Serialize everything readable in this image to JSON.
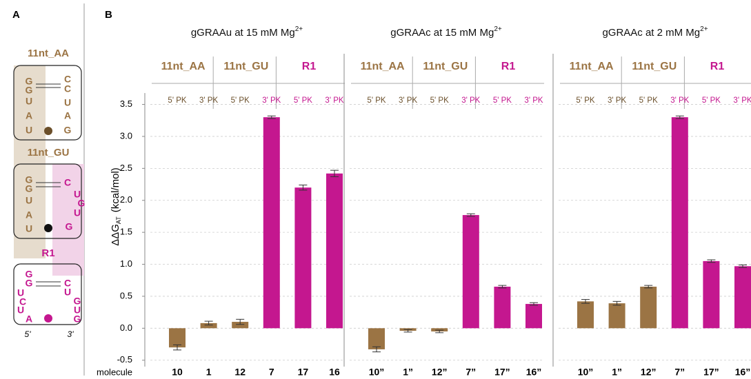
{
  "panel_a": {
    "label": "A",
    "motifs": [
      {
        "name": "11nt_AA",
        "name_color": "#9b7444",
        "left": [
          "G",
          "G",
          "U",
          "A",
          "U"
        ],
        "left_color": "#9b7444",
        "right": [
          "C",
          "C",
          "U",
          "A",
          "G"
        ],
        "right_color": "#9b7444",
        "dot_color": "#6b4f2a"
      },
      {
        "name": "11nt_GU",
        "name_color": "#9b7444",
        "left": [
          "G",
          "G",
          "U",
          "A",
          "U"
        ],
        "left_color": "#9b7444",
        "right": [
          "C",
          "U",
          "G",
          "U",
          "G"
        ],
        "right_color": "#c4178f",
        "dot_color": "#111111"
      },
      {
        "name": "R1",
        "name_color": "#c4178f",
        "left": [
          "G",
          "G",
          "U",
          "C",
          "U",
          "A"
        ],
        "left_color": "#c4178f",
        "right": [
          "C",
          "U",
          "G",
          "U",
          "G"
        ],
        "right_color": "#c4178f",
        "dot_color": "#c4178f"
      }
    ],
    "ends": [
      "5'",
      "3'"
    ]
  },
  "panel_b_label": "B",
  "chart_data": [
    {
      "type": "bar",
      "title": "gGRAAu at 15 mM Mg",
      "title_sup": "2+",
      "ylabel": "ΔΔG",
      "ylabel_sub": "AT",
      "ylabel_unit": "(kcal/mol)",
      "xlabel": "molecule",
      "groups": [
        "11nt_AA",
        "11nt_GU",
        "R1"
      ],
      "group_colors": [
        "#9b7444",
        "#9b7444",
        "#c4178f"
      ],
      "bar_labels": [
        "5' PK",
        "3' PK",
        "5' PK",
        "3' PK",
        "5' PK",
        "3' PK"
      ],
      "bar_label_colors": [
        "#6b4f2a",
        "#6b4f2a",
        "#6b4f2a",
        "#c4178f",
        "#c4178f",
        "#c4178f"
      ],
      "categories": [
        "10",
        "1",
        "12",
        "7",
        "17",
        "16"
      ],
      "values": [
        -0.3,
        0.08,
        0.1,
        3.3,
        2.2,
        2.42
      ],
      "errors": [
        0.04,
        0.03,
        0.04,
        0.02,
        0.04,
        0.05
      ],
      "colors": [
        "#9b7444",
        "#9b7444",
        "#9b7444",
        "#c4178f",
        "#c4178f",
        "#c4178f"
      ],
      "ylim": [
        -0.6,
        3.7
      ],
      "yticks": [
        {
          "value": -0.5,
          "label": "-0.5"
        },
        {
          "value": 0,
          "label": "0.0"
        },
        0.5,
        {
          "value": 1,
          "label": "1.0"
        },
        1.5,
        {
          "value": 2,
          "label": "2.0"
        },
        2.5,
        {
          "value": 3,
          "label": "3.0"
        },
        3.5
      ],
      "grid": true
    },
    {
      "type": "bar",
      "title": "gGRAAc at 15 mM Mg",
      "title_sup": "2+",
      "groups": [
        "11nt_AA",
        "11nt_GU",
        "R1"
      ],
      "group_colors": [
        "#9b7444",
        "#9b7444",
        "#c4178f"
      ],
      "bar_labels": [
        "5' PK",
        "3' PK",
        "5' PK",
        "3' PK",
        "5' PK",
        "3' PK"
      ],
      "bar_label_colors": [
        "#6b4f2a",
        "#6b4f2a",
        "#6b4f2a",
        "#c4178f",
        "#c4178f",
        "#c4178f"
      ],
      "categories": [
        "10”",
        "1”",
        "12”",
        "7”",
        "17”",
        "16”"
      ],
      "values": [
        -0.33,
        -0.04,
        -0.05,
        1.77,
        0.65,
        0.38
      ],
      "errors": [
        0.04,
        0.02,
        0.02,
        0.02,
        0.02,
        0.02
      ],
      "colors": [
        "#9b7444",
        "#9b7444",
        "#9b7444",
        "#c4178f",
        "#c4178f",
        "#c4178f"
      ],
      "ylim": [
        -0.6,
        3.7
      ],
      "yticks": [
        -0.5,
        0,
        0.5,
        1,
        1.5,
        2,
        2.5,
        3,
        3.5
      ],
      "grid": true
    },
    {
      "type": "bar",
      "title": "gGRAAc at 2 mM Mg",
      "title_sup": "2+",
      "groups": [
        "11nt_AA",
        "11nt_GU",
        "R1"
      ],
      "group_colors": [
        "#9b7444",
        "#9b7444",
        "#c4178f"
      ],
      "bar_labels": [
        "5' PK",
        "3' PK",
        "5' PK",
        "3' PK",
        "5' PK",
        "3' PK"
      ],
      "bar_label_colors": [
        "#6b4f2a",
        "#6b4f2a",
        "#6b4f2a",
        "#c4178f",
        "#c4178f",
        "#c4178f"
      ],
      "categories": [
        "10”",
        "1”",
        "12”",
        "7”",
        "17”",
        "16”"
      ],
      "values": [
        0.42,
        0.39,
        0.65,
        3.3,
        1.05,
        0.97
      ],
      "errors": [
        0.03,
        0.03,
        0.02,
        0.02,
        0.02,
        0.02
      ],
      "colors": [
        "#9b7444",
        "#9b7444",
        "#9b7444",
        "#c4178f",
        "#c4178f",
        "#c4178f"
      ],
      "ylim": [
        -0.6,
        3.7
      ],
      "yticks": [
        -0.5,
        0,
        0.5,
        1,
        1.5,
        2,
        2.5,
        3,
        3.5
      ],
      "grid": true
    }
  ]
}
